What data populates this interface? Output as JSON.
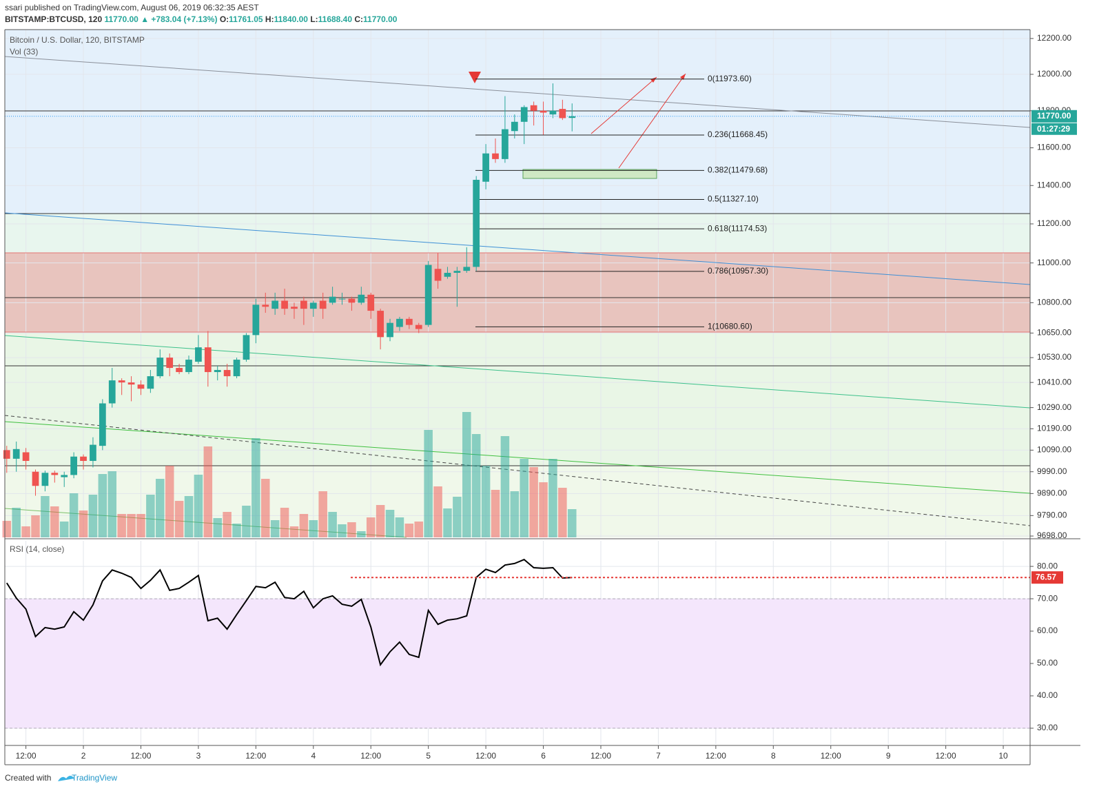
{
  "header": {
    "publisher": "ssari published on TradingView.com, August 06, 2019 06:32:35 AEST",
    "symbol": "BITSTAMP:BTCUSD, 120",
    "last": "11770.00",
    "change": "+783.04 (+7.13%)",
    "ohlc": [
      {
        "key": "O:",
        "value": "11761.05"
      },
      {
        "key": "H:",
        "value": "11840.00"
      },
      {
        "key": "L:",
        "value": "11688.40"
      },
      {
        "key": "C:",
        "value": "11770.00"
      }
    ]
  },
  "footer": {
    "created": "Created with",
    "brand": "TradingView"
  },
  "chart_data": {
    "type": "candlestick",
    "title": "Bitcoin / U.S. Dollar, 120, BITSTAMP",
    "log_scale": true,
    "grid": true,
    "up_color": "#26a69a",
    "down_color": "#ef5350",
    "open": [
      10090,
      10050,
      10080,
      9990,
      9925,
      9985,
      9965,
      9975,
      10060,
      10040,
      10110,
      10310,
      10420,
      10410,
      10400,
      10380,
      10440,
      10530,
      10480,
      10460,
      10510,
      10580,
      10460,
      10470,
      10440,
      10520,
      10640,
      10790,
      10770,
      10810,
      10780,
      10810,
      10770,
      10810,
      10800,
      10820,
      10820,
      10800,
      10840,
      10760,
      10630,
      10680,
      10720,
      10690,
      10690,
      10970,
      10930,
      10950,
      10960,
      10980,
      11420,
      11570,
      11540,
      11690,
      11740,
      11830,
      11800,
      11780,
      11810,
      11761.05
    ],
    "high": [
      10110,
      10130,
      10100,
      10000,
      9995,
      9995,
      9990,
      10080,
      10070,
      10150,
      10330,
      10480,
      10430,
      10440,
      10420,
      10470,
      10570,
      10550,
      10500,
      10540,
      10640,
      10660,
      10490,
      10500,
      10530,
      10650,
      10820,
      10850,
      10850,
      10870,
      10800,
      10830,
      10810,
      10850,
      10880,
      10850,
      10830,
      10880,
      10850,
      10770,
      10720,
      10730,
      10730,
      10700,
      11010,
      11050,
      10980,
      10980,
      11080,
      11450,
      11620,
      11650,
      11880,
      11780,
      11830,
      11850,
      11850,
      11950,
      11860,
      11840
    ],
    "low": [
      9985,
      9990,
      10000,
      9880,
      9900,
      9940,
      9920,
      9960,
      10000,
      10010,
      10090,
      10290,
      10350,
      10320,
      10350,
      10360,
      10430,
      10440,
      10450,
      10450,
      10500,
      10390,
      10420,
      10390,
      10430,
      10510,
      10600,
      10750,
      10740,
      10740,
      10720,
      10690,
      10730,
      10720,
      10790,
      10790,
      10760,
      10790,
      10720,
      10570,
      10610,
      10660,
      10670,
      10650,
      10680,
      10870,
      10920,
      10780,
      10950,
      10960,
      11380,
      11520,
      11520,
      11650,
      11620,
      11720,
      11670,
      11760,
      11750,
      11688.4
    ],
    "close": [
      10050,
      10095,
      10040,
      9925,
      9985,
      9975,
      9975,
      10060,
      10040,
      10115,
      10310,
      10420,
      10410,
      10400,
      10380,
      10440,
      10530,
      10480,
      10460,
      10520,
      10580,
      10460,
      10470,
      10440,
      10520,
      10640,
      10790,
      10780,
      10810,
      10770,
      10770,
      10770,
      10800,
      10770,
      10830,
      10820,
      10800,
      10840,
      10760,
      10630,
      10700,
      10720,
      10690,
      10670,
      10990,
      10910,
      10950,
      10960,
      10980,
      11430,
      11570,
      11540,
      11700,
      11740,
      11820,
      11800,
      11790,
      11800,
      11760,
      11770
    ],
    "ylim": [
      9692,
      12250
    ],
    "yticks": [
      {
        "value": 12200,
        "label": "12200.00"
      },
      {
        "value": 12000,
        "label": "12000.00"
      },
      {
        "value": 11800,
        "label": "11800.00"
      },
      {
        "value": 11600,
        "label": "11600.00"
      },
      {
        "value": 11400,
        "label": "11400.00"
      },
      {
        "value": 11200,
        "label": "11200.00"
      },
      {
        "value": 11000,
        "label": "11000.00"
      },
      {
        "value": 10800,
        "label": "10800.00"
      },
      {
        "value": 10650,
        "label": "10650.00"
      },
      {
        "value": 10530,
        "label": "10530.00"
      },
      {
        "value": 10410,
        "label": "10410.00"
      },
      {
        "value": 10290,
        "label": "10290.00"
      },
      {
        "value": 10190,
        "label": "10190.00"
      },
      {
        "value": 10090,
        "label": "10090.00"
      },
      {
        "value": 9990,
        "label": "9990.00"
      },
      {
        "value": 9890,
        "label": "9890.00"
      },
      {
        "value": 9790,
        "label": "9790.00"
      },
      {
        "value": 9698,
        "label": "9698.00"
      }
    ],
    "xlim": [
      -0.2,
      106.8
    ],
    "xticks": [
      {
        "value": 2,
        "label": "12:00"
      },
      {
        "value": 8,
        "label": "2"
      },
      {
        "value": 14,
        "label": "12:00"
      },
      {
        "value": 20,
        "label": "3"
      },
      {
        "value": 26,
        "label": "12:00"
      },
      {
        "value": 32,
        "label": "4"
      },
      {
        "value": 38,
        "label": "12:00"
      },
      {
        "value": 44,
        "label": "5"
      },
      {
        "value": 50,
        "label": "12:00"
      },
      {
        "value": 56,
        "label": "6"
      },
      {
        "value": 62,
        "label": "12:00"
      },
      {
        "value": 68,
        "label": "7"
      },
      {
        "value": 74,
        "label": "12:00"
      },
      {
        "value": 80,
        "label": "8"
      },
      {
        "value": 86,
        "label": "12:00"
      },
      {
        "value": 92,
        "label": "9"
      },
      {
        "value": 98,
        "label": "12:00"
      },
      {
        "value": 104,
        "label": "10"
      }
    ],
    "last_price": {
      "value": 11770,
      "label": "11770.00"
    },
    "countdown": "01:27:29",
    "fib_levels": [
      {
        "label": "0(11973.60)",
        "value": 11973.6
      },
      {
        "label": "0.236(11668.45)",
        "value": 11668.45
      },
      {
        "label": "0.382(11479.68)",
        "value": 11479.68
      },
      {
        "label": "0.5(11327.10)",
        "value": 11327.1
      },
      {
        "label": "0.618(11174.53)",
        "value": 11174.53
      },
      {
        "label": "0.786(10957.30)",
        "value": 10957.3
      },
      {
        "label": "1(10680.60)",
        "value": 10680.6
      }
    ],
    "volume": {
      "name": "Vol (33)",
      "values": [
        24,
        43,
        16,
        32,
        60,
        45,
        23,
        64,
        39,
        62,
        92,
        96,
        34,
        34,
        34,
        62,
        85,
        104,
        53,
        60,
        91,
        132,
        28,
        37,
        20,
        46,
        144,
        85,
        25,
        43,
        16,
        34,
        25,
        67,
        37,
        19,
        22,
        9,
        29,
        47,
        40,
        29,
        20,
        23,
        156,
        74,
        42,
        59,
        182,
        150,
        104,
        69,
        147,
        67,
        114,
        102,
        80,
        114,
        72,
        41
      ]
    },
    "rsi": {
      "name": "RSI (14, close)",
      "color": "#000000",
      "values": [
        74.9,
        70.2,
        66.8,
        58.3,
        61.1,
        60.6,
        61.3,
        66.0,
        63.4,
        68.1,
        75.5,
        78.9,
        77.9,
        76.6,
        73.2,
        75.7,
        78.9,
        72.6,
        73.2,
        75.1,
        77.2,
        63.2,
        64.0,
        60.6,
        65.1,
        69.4,
        73.8,
        73.4,
        75.1,
        70.4,
        70.0,
        72.3,
        67.2,
        70.0,
        70.9,
        68.3,
        67.7,
        69.8,
        61.3,
        49.6,
        53.6,
        56.6,
        52.8,
        51.9,
        66.4,
        62.1,
        63.4,
        63.8,
        64.7,
        76.6,
        79.1,
        78.1,
        80.4,
        80.9,
        82.1,
        79.6,
        79.4,
        79.6,
        76.4,
        76.57
      ],
      "ylim": [
        25.1,
        87.9
      ],
      "yticks": [
        {
          "value": 80,
          "label": "80.00"
        },
        {
          "value": 70,
          "label": "70.00"
        },
        {
          "value": 60,
          "label": "60.00"
        },
        {
          "value": 50,
          "label": "50.00"
        },
        {
          "value": 40,
          "label": "40.00"
        },
        {
          "value": 30,
          "label": "30.00"
        }
      ],
      "band": [
        70,
        30
      ]
    }
  }
}
